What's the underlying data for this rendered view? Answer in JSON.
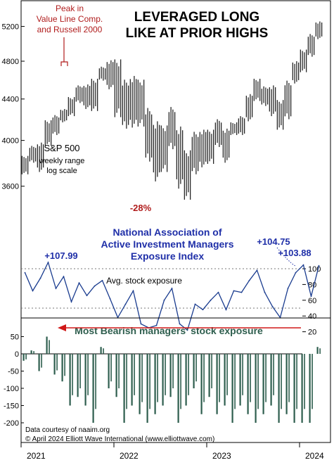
{
  "chart_title_line1": "LEVERAGED LONG",
  "chart_title_line2": "LIKE AT PRIOR HIGHS",
  "peak_annotation": [
    "Peak in",
    "Value Line Comp.",
    "and Russell 2000"
  ],
  "sp_label": [
    "S&P 500",
    "weekly range",
    "log scale"
  ],
  "drawdown_label": "-28%",
  "naaim_title": [
    "National Association of",
    "Active Investment Managers",
    "Exposure Index"
  ],
  "avg_label": "Avg. stock exposure",
  "bearish_title": "Most Bearish managers’ stock exposure",
  "source_lines": [
    "Data courtesy of naaim.org",
    "© April 2024 Elliott Wave International (www.elliottwave.com)"
  ],
  "colors": {
    "price": "#000000",
    "exposure_line": "#1a3c8f",
    "bearish_bars": "#2e5e4e",
    "annotation_red": "#b01c1c",
    "annotation_blue": "#1f2fa8",
    "frame": "#000000"
  },
  "chart_data": [
    {
      "type": "candlestick",
      "title": "S&P 500 weekly range",
      "y_scale": "log",
      "ylim": [
        3400,
        5350
      ],
      "yticks": [
        3600,
        4000,
        4400,
        4800,
        5200
      ],
      "x_labels": [
        "2021",
        "2022",
        "2023",
        "2024"
      ],
      "series": [
        {
          "date": "2021-01",
          "low": 3700,
          "high": 3860
        },
        {
          "date": "2021-02",
          "low": 3800,
          "high": 3950
        },
        {
          "date": "2021-03",
          "low": 3720,
          "high": 3980
        },
        {
          "date": "2021-04",
          "low": 3950,
          "high": 4190
        },
        {
          "date": "2021-05",
          "low": 4050,
          "high": 4240
        },
        {
          "date": "2021-06",
          "low": 4170,
          "high": 4300
        },
        {
          "date": "2021-07",
          "low": 4230,
          "high": 4420
        },
        {
          "date": "2021-08",
          "low": 4360,
          "high": 4540
        },
        {
          "date": "2021-09",
          "low": 4300,
          "high": 4550
        },
        {
          "date": "2021-10",
          "low": 4280,
          "high": 4610
        },
        {
          "date": "2021-11",
          "low": 4590,
          "high": 4740
        },
        {
          "date": "2021-12",
          "low": 4500,
          "high": 4810
        },
        {
          "date": "2022-01",
          "low": 4220,
          "high": 4820
        },
        {
          "date": "2022-02",
          "low": 4110,
          "high": 4600
        },
        {
          "date": "2022-03",
          "low": 4120,
          "high": 4640
        },
        {
          "date": "2022-04",
          "low": 4130,
          "high": 4600
        },
        {
          "date": "2022-05",
          "low": 3810,
          "high": 4310
        },
        {
          "date": "2022-06",
          "low": 3640,
          "high": 4180
        },
        {
          "date": "2022-07",
          "low": 3720,
          "high": 4140
        },
        {
          "date": "2022-08",
          "low": 3920,
          "high": 4320
        },
        {
          "date": "2022-09",
          "low": 3580,
          "high": 4130
        },
        {
          "date": "2022-10",
          "low": 3490,
          "high": 3910
        },
        {
          "date": "2022-11",
          "low": 3700,
          "high": 4080
        },
        {
          "date": "2022-12",
          "low": 3760,
          "high": 4100
        },
        {
          "date": "2023-01",
          "low": 3790,
          "high": 4100
        },
        {
          "date": "2023-02",
          "low": 3940,
          "high": 4200
        },
        {
          "date": "2023-03",
          "low": 3800,
          "high": 4110
        },
        {
          "date": "2023-04",
          "low": 4050,
          "high": 4170
        },
        {
          "date": "2023-05",
          "low": 4050,
          "high": 4230
        },
        {
          "date": "2023-06",
          "low": 4180,
          "high": 4450
        },
        {
          "date": "2023-07",
          "low": 4380,
          "high": 4610
        },
        {
          "date": "2023-08",
          "low": 4330,
          "high": 4530
        },
        {
          "date": "2023-09",
          "low": 4230,
          "high": 4540
        },
        {
          "date": "2023-10",
          "low": 4100,
          "high": 4390
        },
        {
          "date": "2023-11",
          "low": 4200,
          "high": 4590
        },
        {
          "date": "2023-12",
          "low": 4560,
          "high": 4800
        },
        {
          "date": "2024-01",
          "low": 4680,
          "high": 4930
        },
        {
          "date": "2024-02",
          "low": 4850,
          "high": 5110
        },
        {
          "date": "2024-03",
          "low": 5050,
          "high": 5260
        }
      ]
    },
    {
      "type": "line",
      "title": "National Association of Active Investment Managers Exposure Index",
      "ylim": [
        10,
        112
      ],
      "yticks": [
        20,
        40,
        60,
        80,
        100
      ],
      "reference_lines": [
        100,
        50
      ],
      "annotations": [
        {
          "date": "2021-04",
          "label": "+107.99",
          "value": 107.99
        },
        {
          "date": "2024-01",
          "label": "+104.75",
          "value": 104.75
        },
        {
          "date": "2024-03",
          "label": "+103.88",
          "value": 103.88
        }
      ],
      "x": [
        "2021-01",
        "2021-02",
        "2021-03",
        "2021-04",
        "2021-05",
        "2021-06",
        "2021-07",
        "2021-08",
        "2021-09",
        "2021-10",
        "2021-11",
        "2021-12",
        "2022-01",
        "2022-02",
        "2022-03",
        "2022-04",
        "2022-05",
        "2022-06",
        "2022-07",
        "2022-08",
        "2022-09",
        "2022-10",
        "2022-11",
        "2022-12",
        "2023-01",
        "2023-02",
        "2023-03",
        "2023-04",
        "2023-05",
        "2023-06",
        "2023-07",
        "2023-08",
        "2023-09",
        "2023-10",
        "2023-11",
        "2023-12",
        "2024-01",
        "2024-02",
        "2024-03"
      ],
      "values": [
        95,
        72,
        88,
        108,
        75,
        90,
        58,
        82,
        66,
        78,
        85,
        62,
        38,
        55,
        72,
        30,
        25,
        28,
        60,
        75,
        30,
        22,
        55,
        48,
        60,
        70,
        48,
        72,
        70,
        85,
        98,
        70,
        52,
        38,
        75,
        95,
        104.75,
        65,
        103.88
      ]
    },
    {
      "type": "bar",
      "title": "Most Bearish managers’ stock exposure",
      "ylim": [
        -225,
        60
      ],
      "yticks": [
        50,
        0,
        -50,
        -100,
        -150,
        -200
      ],
      "x": [
        "2021-01",
        "2021-02",
        "2021-03",
        "2021-04",
        "2021-05",
        "2021-06",
        "2021-07",
        "2021-08",
        "2021-09",
        "2021-10",
        "2021-11",
        "2021-12",
        "2022-01",
        "2022-02",
        "2022-03",
        "2022-04",
        "2022-05",
        "2022-06",
        "2022-07",
        "2022-08",
        "2022-09",
        "2022-10",
        "2022-11",
        "2022-12",
        "2023-01",
        "2023-02",
        "2023-03",
        "2023-04",
        "2023-05",
        "2023-06",
        "2023-07",
        "2023-08",
        "2023-09",
        "2023-10",
        "2023-11",
        "2023-12",
        "2024-01",
        "2024-02",
        "2024-03"
      ],
      "values": [
        -20,
        10,
        -50,
        50,
        -60,
        -80,
        -150,
        -125,
        -150,
        -200,
        20,
        -100,
        -125,
        -200,
        -150,
        -175,
        -200,
        -175,
        -150,
        -125,
        -200,
        -150,
        -100,
        -175,
        -125,
        -175,
        -150,
        -200,
        -150,
        -175,
        -200,
        -175,
        -150,
        -200,
        -175,
        -200,
        -200,
        -200,
        20
      ]
    }
  ]
}
